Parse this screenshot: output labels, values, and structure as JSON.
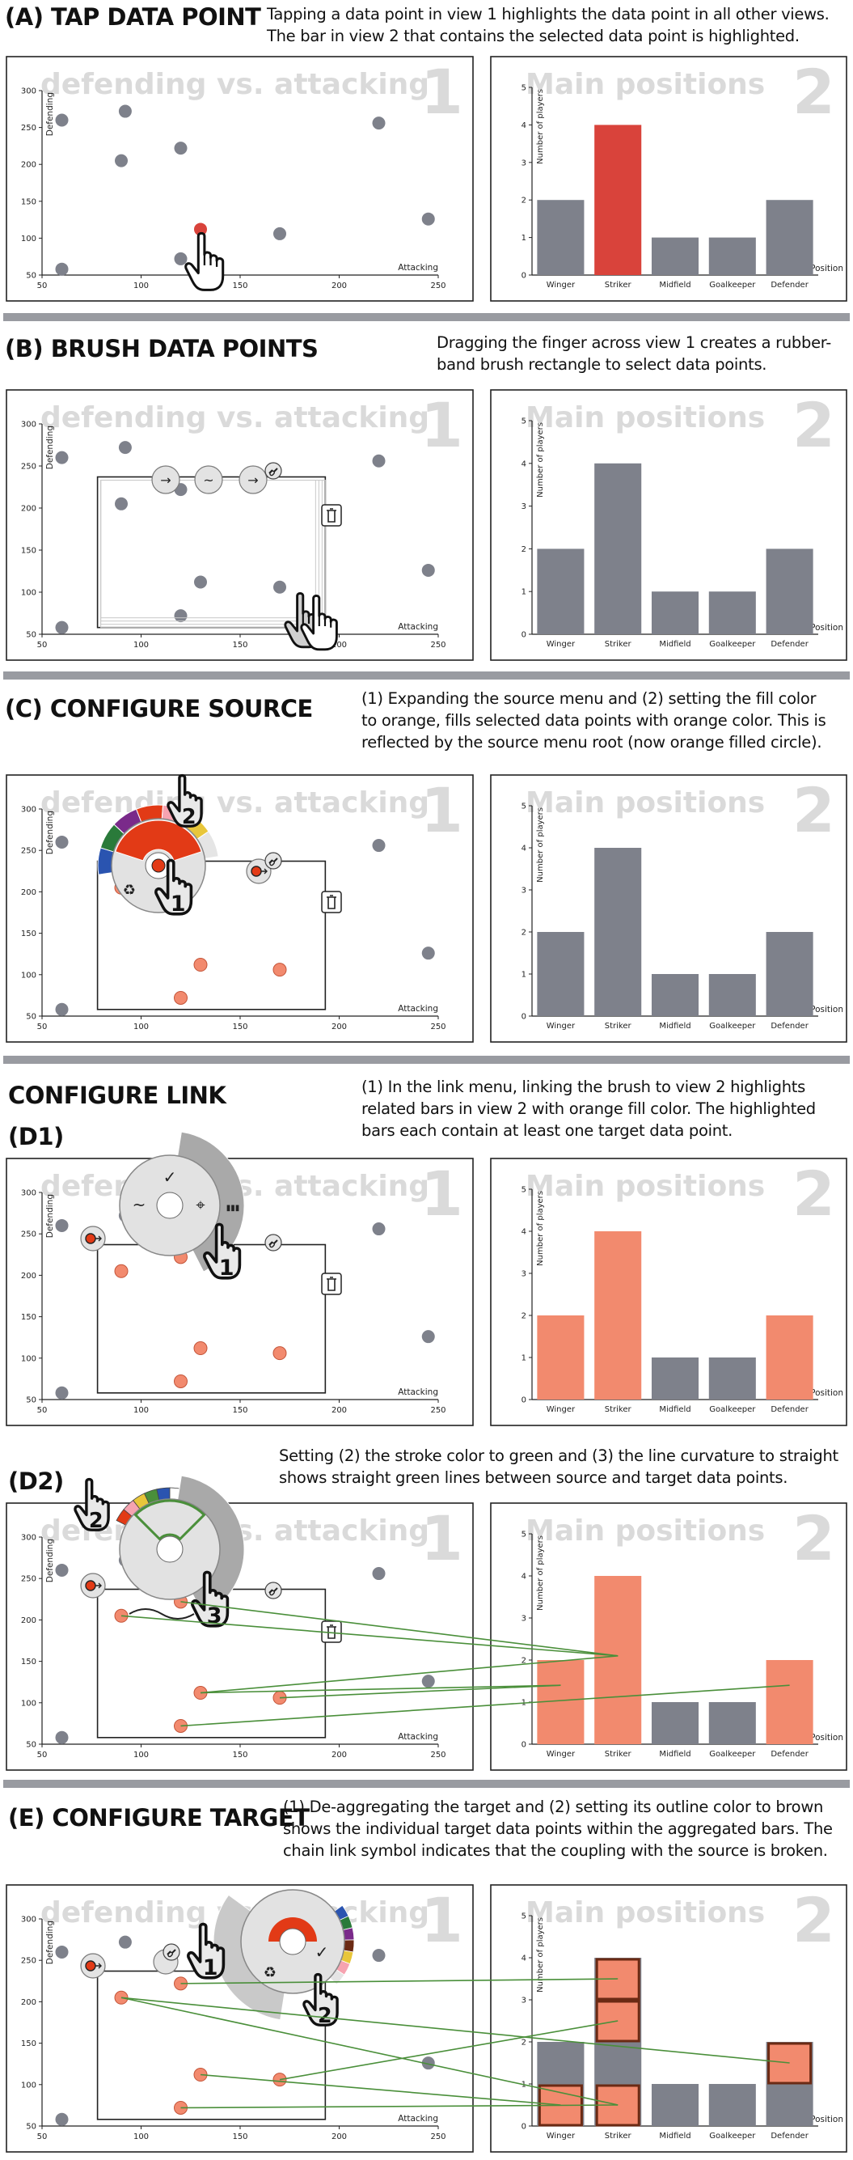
{
  "colors": {
    "dot": "#7e818b",
    "bar": "#7e818b",
    "highlight_red": "#d9433b",
    "orange_fill": "#f28a6e",
    "source_orange": "#e23a16",
    "link_green": "#4a8f3a",
    "target_outline_brown": "#6b2a14",
    "watermark": "#dadada",
    "divider": "#999ba1"
  },
  "views": {
    "scatter": {
      "title": "defending vs. attacking",
      "number": "1",
      "xlabel": "Attacking",
      "ylabel": "Defending",
      "xticks": [
        50,
        100,
        150,
        200,
        250
      ],
      "yticks": [
        50,
        100,
        150,
        200,
        250,
        300
      ]
    },
    "bars": {
      "title": "Main positions",
      "number": "2",
      "xlabel": "Position",
      "ylabel": "Number of players",
      "yticks": [
        0,
        1,
        2,
        3,
        4,
        5
      ]
    }
  },
  "chart_data": [
    {
      "type": "scatter",
      "title": "defending vs. attacking",
      "xlabel": "Attacking",
      "ylabel": "Defending",
      "xlim": [
        50,
        250
      ],
      "ylim": [
        50,
        300
      ],
      "points": [
        {
          "x": 60,
          "y": 58
        },
        {
          "x": 60,
          "y": 260
        },
        {
          "x": 90,
          "y": 205
        },
        {
          "x": 92,
          "y": 272
        },
        {
          "x": 120,
          "y": 72
        },
        {
          "x": 120,
          "y": 222
        },
        {
          "x": 130,
          "y": 112
        },
        {
          "x": 170,
          "y": 106
        },
        {
          "x": 220,
          "y": 256
        },
        {
          "x": 245,
          "y": 126
        }
      ]
    },
    {
      "type": "bar",
      "title": "Main positions",
      "xlabel": "Position",
      "ylabel": "Number of players",
      "categories": [
        "Winger",
        "Striker",
        "Midfield",
        "Goalkeeper",
        "Defender"
      ],
      "values": [
        2,
        4,
        1,
        1,
        2
      ],
      "ylim": [
        0,
        5
      ]
    }
  ],
  "sections": [
    {
      "id": "A",
      "heading": "(A) TAP DATA POINT",
      "caption": [
        "Tapping a data point in view 1 highlights the data point in all other views.",
        "The bar in view 2 that contains the selected data point is highlighted."
      ]
    },
    {
      "id": "B",
      "heading": "(B) BRUSH DATA POINTS",
      "caption": [
        "Dragging the finger across view 1 creates a rubber-",
        "band brush rectangle to select data points."
      ]
    },
    {
      "id": "C",
      "heading": "(C) CONFIGURE SOURCE",
      "caption": [
        "(1) Expanding the source menu and (2) setting the fill color",
        "to orange, fills selected data points with orange color. This is",
        "reflected by the source menu root (now orange filled circle)."
      ]
    },
    {
      "id": "D",
      "heading": "CONFIGURE LINK",
      "subheading": "(D1)",
      "caption": [
        "(1) In the link menu, linking the brush to view 2 highlights",
        "related bars in view 2 with orange fill color. The highlighted",
        "bars each contain at least one target data point."
      ]
    },
    {
      "id": "D2",
      "heading": "(D2)",
      "caption": [
        "Setting (2) the stroke color to green and (3) the line curvature to straight",
        "shows straight green lines between source and target data points."
      ]
    },
    {
      "id": "E",
      "heading": "(E) CONFIGURE TARGET",
      "caption": [
        "(1) De-aggregating the target and (2) setting its outline color to brown",
        "shows the individual target data points within the aggregated bars. The",
        "chain link symbol indicates that the coupling with the source is broken."
      ]
    }
  ],
  "callouts": [
    "1",
    "2",
    "3"
  ],
  "icons": [
    "hand-pointer-icon",
    "trash-icon",
    "chain-link-icon",
    "arrow-icon",
    "curve-icon",
    "crosshair-icon",
    "recycle-icon",
    "bar-chart-icon",
    "checkmark-icon"
  ]
}
